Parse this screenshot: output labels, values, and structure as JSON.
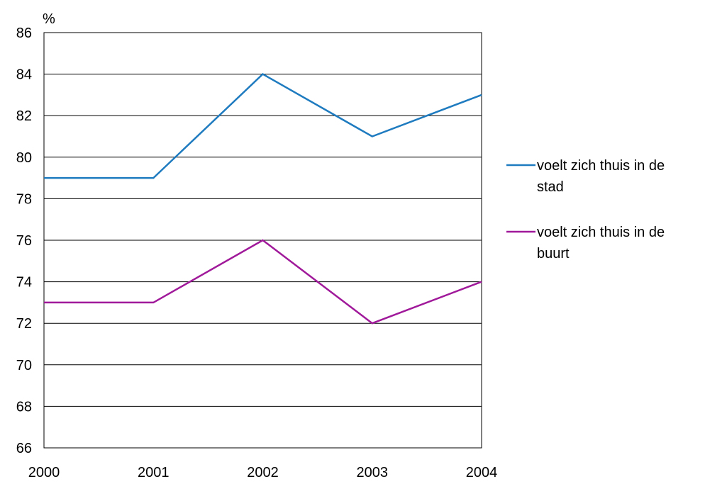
{
  "chart_data": {
    "type": "line",
    "x": [
      "2000",
      "2001",
      "2002",
      "2003",
      "2004"
    ],
    "series": [
      {
        "name": "voelt zich thuis in de stad",
        "name_lines": [
          "voelt zich thuis in de",
          "stad"
        ],
        "color": "#1f7bbf",
        "values": [
          79,
          79,
          84,
          81,
          83
        ]
      },
      {
        "name": "voelt zich thuis in de buurt",
        "name_lines": [
          "voelt zich thuis in de",
          "buurt"
        ],
        "color": "#a0199a",
        "values": [
          73,
          73,
          76,
          72,
          74
        ]
      }
    ],
    "ylabel": "%",
    "ylim": [
      66,
      86
    ],
    "yticks": [
      "66",
      "68",
      "70",
      "72",
      "74",
      "76",
      "78",
      "80",
      "82",
      "84",
      "86"
    ],
    "grid": true,
    "legend_position": "right"
  }
}
